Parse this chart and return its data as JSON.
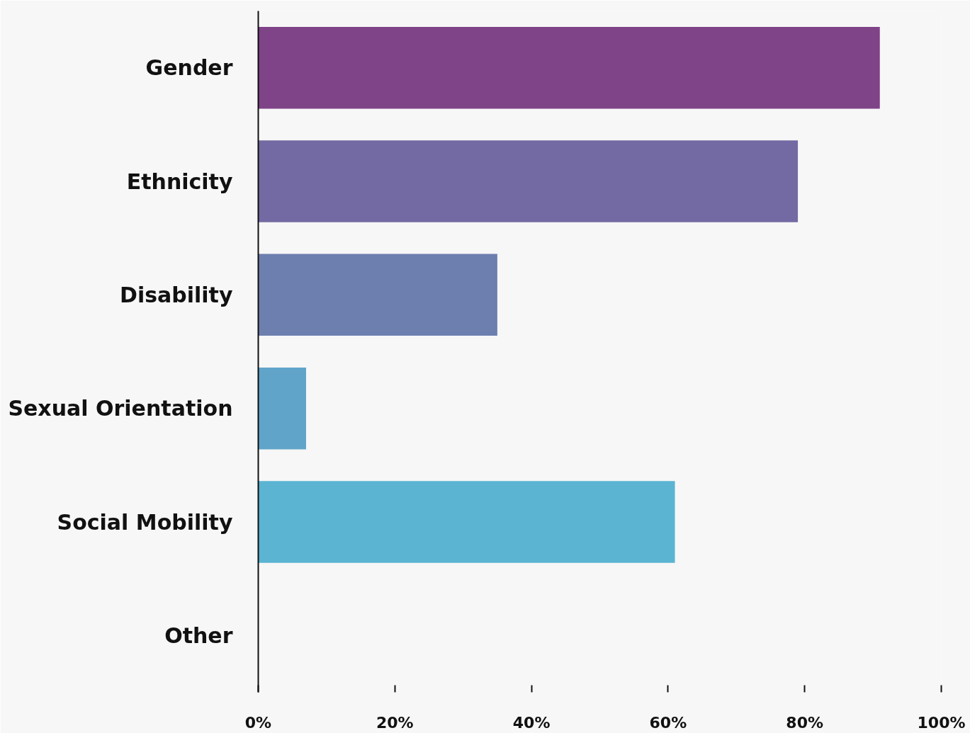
{
  "chart_data": {
    "type": "bar",
    "orientation": "horizontal",
    "categories": [
      "Gender",
      "Ethnicity",
      "Disability",
      "Sexual Orientation",
      "Social Mobility",
      "Other"
    ],
    "values": [
      91,
      79,
      35,
      7,
      61,
      0
    ],
    "colors": [
      "#7f4388",
      "#736aa3",
      "#6c7fae",
      "#60a4c9",
      "#5ab4d2",
      "#5ab4d2"
    ],
    "xlim": [
      0,
      100
    ],
    "xticks": [
      {
        "value": 0,
        "label": "0%"
      },
      {
        "value": 20,
        "label": "20%"
      },
      {
        "value": 40,
        "label": "40%"
      },
      {
        "value": 60,
        "label": "60%"
      },
      {
        "value": 80,
        "label": "80%"
      },
      {
        "value": 100,
        "label": "100%"
      }
    ]
  }
}
